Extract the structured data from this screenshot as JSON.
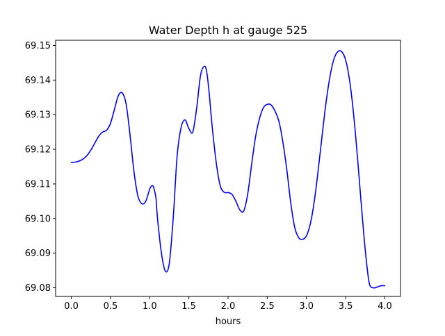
{
  "chart_data": {
    "type": "line",
    "title": "Water Depth h at gauge 525",
    "xlabel": "hours",
    "ylabel": "",
    "xlim": [
      -0.2,
      4.2
    ],
    "ylim": [
      69.0775,
      69.1515
    ],
    "xticks": [
      0.0,
      0.5,
      1.0,
      1.5,
      2.0,
      2.5,
      3.0,
      3.5,
      4.0
    ],
    "xtick_labels": [
      "0.0",
      "0.5",
      "1.0",
      "1.5",
      "2.0",
      "2.5",
      "3.0",
      "3.5",
      "4.0"
    ],
    "yticks": [
      69.08,
      69.09,
      69.1,
      69.11,
      69.12,
      69.13,
      69.14,
      69.15
    ],
    "ytick_labels": [
      "69.08",
      "69.09",
      "69.10",
      "69.11",
      "69.12",
      "69.13",
      "69.14",
      "69.15"
    ],
    "grid": false,
    "series": [
      {
        "color": "#0000ff",
        "x": [
          0.0,
          0.05,
          0.1,
          0.15,
          0.2,
          0.25,
          0.3,
          0.35,
          0.4,
          0.45,
          0.5,
          0.55,
          0.6,
          0.65,
          0.7,
          0.75,
          0.8,
          0.85,
          0.9,
          0.95,
          1.0,
          1.03,
          1.05,
          1.08,
          1.1,
          1.15,
          1.2,
          1.25,
          1.3,
          1.35,
          1.4,
          1.45,
          1.5,
          1.55,
          1.6,
          1.65,
          1.7,
          1.73,
          1.76,
          1.8,
          1.85,
          1.9,
          1.95,
          2.0,
          2.05,
          2.1,
          2.15,
          2.2,
          2.25,
          2.3,
          2.35,
          2.4,
          2.45,
          2.5,
          2.55,
          2.6,
          2.65,
          2.7,
          2.75,
          2.8,
          2.85,
          2.9,
          2.95,
          3.0,
          3.05,
          3.1,
          3.15,
          3.2,
          3.25,
          3.3,
          3.35,
          3.4,
          3.45,
          3.5,
          3.55,
          3.6,
          3.65,
          3.7,
          3.75,
          3.8,
          3.85,
          3.9,
          3.95,
          4.0
        ],
        "y": [
          69.1162,
          69.1163,
          69.1166,
          69.1172,
          69.1182,
          69.1198,
          69.1218,
          69.1238,
          69.125,
          69.1255,
          69.1275,
          69.1315,
          69.1355,
          69.1363,
          69.133,
          69.124,
          69.1135,
          69.1065,
          69.1043,
          69.105,
          69.1085,
          69.1095,
          69.109,
          69.106,
          69.1,
          69.09,
          69.0848,
          69.087,
          69.1,
          69.118,
          69.1262,
          69.1285,
          69.126,
          69.125,
          69.132,
          69.1415,
          69.144,
          69.142,
          69.136,
          69.126,
          69.116,
          69.1095,
          69.1076,
          69.1075,
          69.107,
          69.105,
          69.1025,
          69.1022,
          69.107,
          69.1155,
          69.1235,
          69.1288,
          69.132,
          69.133,
          69.1328,
          69.131,
          69.128,
          69.122,
          69.114,
          69.1045,
          69.0975,
          69.0945,
          69.094,
          69.095,
          69.0985,
          69.105,
          69.114,
          69.124,
          69.1335,
          69.141,
          69.146,
          69.1482,
          69.1482,
          69.1458,
          69.14,
          69.1305,
          69.118,
          69.104,
          69.091,
          69.0815,
          69.08,
          69.0802,
          69.0806,
          69.0806
        ]
      }
    ]
  }
}
